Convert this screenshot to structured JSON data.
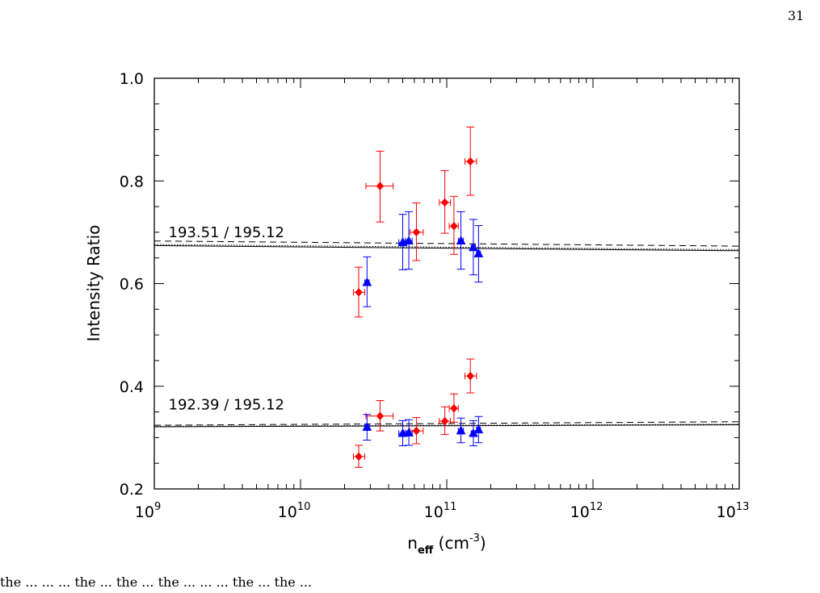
{
  "page": {
    "page_number": "31",
    "cut_off_text": "the ... ... ... the ... the ... the ... ... ... the ... the ..."
  },
  "chart_data": {
    "type": "scatter",
    "xlabel": {
      "main": "n",
      "sub": "eff",
      "units_open": " (cm",
      "units_exp": "-3",
      "units_close": ")"
    },
    "ylabel": "Intensity Ratio",
    "xscale": "log",
    "xlim": [
      1000000000.0,
      10000000000000.0
    ],
    "ylim": [
      0.2,
      1.0
    ],
    "x_tick_labels": [
      {
        "value": 1000000000.0,
        "base": "10",
        "exp": "9"
      },
      {
        "value": 10000000000.0,
        "base": "10",
        "exp": "10"
      },
      {
        "value": 100000000000.0,
        "base": "10",
        "exp": "11"
      },
      {
        "value": 1000000000000.0,
        "base": "10",
        "exp": "12"
      },
      {
        "value": 10000000000000.0,
        "base": "10",
        "exp": "13"
      }
    ],
    "y_tick_labels": [
      {
        "value": 0.2,
        "label": "0.2"
      },
      {
        "value": 0.4,
        "label": "0.4"
      },
      {
        "value": 0.6,
        "label": "0.6"
      },
      {
        "value": 0.8,
        "label": "0.8"
      },
      {
        "value": 1.0,
        "label": "1.0"
      }
    ],
    "annotations": [
      {
        "text": "193.51 / 195.12",
        "x": 1250000000.0,
        "y": 0.69
      },
      {
        "text": "192.39 / 195.12",
        "x": 1250000000.0,
        "y": 0.355
      }
    ],
    "theory_curves": [
      {
        "ratio": "193.51 / 195.12",
        "style": "solid",
        "x": [
          1000000000.0,
          10000000000000.0
        ],
        "y": [
          0.674,
          0.664
        ]
      },
      {
        "ratio": "193.51 / 195.12",
        "style": "dotted",
        "x": [
          1000000000.0,
          10000000000000.0
        ],
        "y": [
          0.676,
          0.666
        ]
      },
      {
        "ratio": "193.51 / 195.12",
        "style": "dashed",
        "x": [
          1000000000.0,
          10000000000000.0
        ],
        "y": [
          0.683,
          0.673
        ]
      },
      {
        "ratio": "192.39 / 195.12",
        "style": "solid",
        "x": [
          1000000000.0,
          10000000000000.0
        ],
        "y": [
          0.321,
          0.325
        ]
      },
      {
        "ratio": "192.39 / 195.12",
        "style": "dotted",
        "x": [
          1000000000.0,
          10000000000000.0
        ],
        "y": [
          0.322,
          0.326
        ]
      },
      {
        "ratio": "192.39 / 195.12",
        "style": "dashed",
        "x": [
          1000000000.0,
          10000000000000.0
        ],
        "y": [
          0.324,
          0.331
        ]
      }
    ],
    "series": [
      {
        "marker": "diamond",
        "color": "#ff0000",
        "points": [
          {
            "x": 25000000000.0,
            "y": 0.583,
            "xerr": [
              23000000000.0,
              27500000000.0
            ],
            "yerr": [
              0.535,
              0.632
            ]
          },
          {
            "x": 35000000000.0,
            "y": 0.79,
            "xerr": [
              28000000000.0,
              43000000000.0
            ],
            "yerr": [
              0.72,
              0.858
            ]
          },
          {
            "x": 62000000000.0,
            "y": 0.7,
            "xerr": [
              56000000000.0,
              69000000000.0
            ],
            "yerr": [
              0.645,
              0.757
            ]
          },
          {
            "x": 97000000000.0,
            "y": 0.758,
            "xerr": [
              89000000000.0,
              106000000000.0
            ],
            "yerr": [
              0.698,
              0.82
            ]
          },
          {
            "x": 112000000000.0,
            "y": 0.712,
            "xerr": [
              104000000000.0,
              120000000000.0
            ],
            "yerr": [
              0.657,
              0.77
            ]
          },
          {
            "x": 145000000000.0,
            "y": 0.838,
            "xerr": [
              133000000000.0,
              160000000000.0
            ],
            "yerr": [
              0.772,
              0.905
            ]
          },
          {
            "x": 25000000000.0,
            "y": 0.263,
            "xerr": [
              23000000000.0,
              27500000000.0
            ],
            "yerr": [
              0.242,
              0.285
            ]
          },
          {
            "x": 35000000000.0,
            "y": 0.342,
            "xerr": [
              28000000000.0,
              43000000000.0
            ],
            "yerr": [
              0.313,
              0.372
            ]
          },
          {
            "x": 62000000000.0,
            "y": 0.313,
            "xerr": [
              56000000000.0,
              69000000000.0
            ],
            "yerr": [
              0.288,
              0.339
            ]
          },
          {
            "x": 97000000000.0,
            "y": 0.332,
            "xerr": [
              89000000000.0,
              106000000000.0
            ],
            "yerr": [
              0.306,
              0.36
            ]
          },
          {
            "x": 112000000000.0,
            "y": 0.357,
            "xerr": [
              104000000000.0,
              120000000000.0
            ],
            "yerr": [
              0.33,
              0.385
            ]
          },
          {
            "x": 145000000000.0,
            "y": 0.42,
            "xerr": [
              133000000000.0,
              160000000000.0
            ],
            "yerr": [
              0.387,
              0.453
            ]
          }
        ]
      },
      {
        "marker": "triangle",
        "color": "#0000ff",
        "points": [
          {
            "x": 28500000000.0,
            "y": 0.602,
            "xerr": [
              27500000000.0,
              29500000000.0
            ],
            "yerr": [
              0.555,
              0.652
            ]
          },
          {
            "x": 50000000000.0,
            "y": 0.68,
            "xerr": [
              47000000000.0,
              53000000000.0
            ],
            "yerr": [
              0.627,
              0.735
            ]
          },
          {
            "x": 55000000000.0,
            "y": 0.683,
            "xerr": [
              52000000000.0,
              58000000000.0
            ],
            "yerr": [
              0.628,
              0.74
            ]
          },
          {
            "x": 125000000000.0,
            "y": 0.683,
            "xerr": [
              120000000000.0,
              130000000000.0
            ],
            "yerr": [
              0.628,
              0.74
            ]
          },
          {
            "x": 152000000000.0,
            "y": 0.67,
            "xerr": [
              147000000000.0,
              157000000000.0
            ],
            "yerr": [
              0.617,
              0.725
            ]
          },
          {
            "x": 165000000000.0,
            "y": 0.658,
            "xerr": [
              160000000000.0,
              170000000000.0
            ],
            "yerr": [
              0.603,
              0.713
            ]
          },
          {
            "x": 28500000000.0,
            "y": 0.32,
            "xerr": [
              27500000000.0,
              29500000000.0
            ],
            "yerr": [
              0.295,
              0.345
            ]
          },
          {
            "x": 50000000000.0,
            "y": 0.308,
            "xerr": [
              47000000000.0,
              53000000000.0
            ],
            "yerr": [
              0.284,
              0.333
            ]
          },
          {
            "x": 55000000000.0,
            "y": 0.309,
            "xerr": [
              52000000000.0,
              58000000000.0
            ],
            "yerr": [
              0.285,
              0.335
            ]
          },
          {
            "x": 125000000000.0,
            "y": 0.313,
            "xerr": [
              120000000000.0,
              130000000000.0
            ],
            "yerr": [
              0.29,
              0.338
            ]
          },
          {
            "x": 152000000000.0,
            "y": 0.308,
            "xerr": [
              147000000000.0,
              157000000000.0
            ],
            "yerr": [
              0.284,
              0.333
            ]
          },
          {
            "x": 165000000000.0,
            "y": 0.315,
            "xerr": [
              160000000000.0,
              170000000000.0
            ],
            "yerr": [
              0.29,
              0.341
            ]
          }
        ]
      }
    ],
    "grid": false,
    "legend": "none"
  }
}
